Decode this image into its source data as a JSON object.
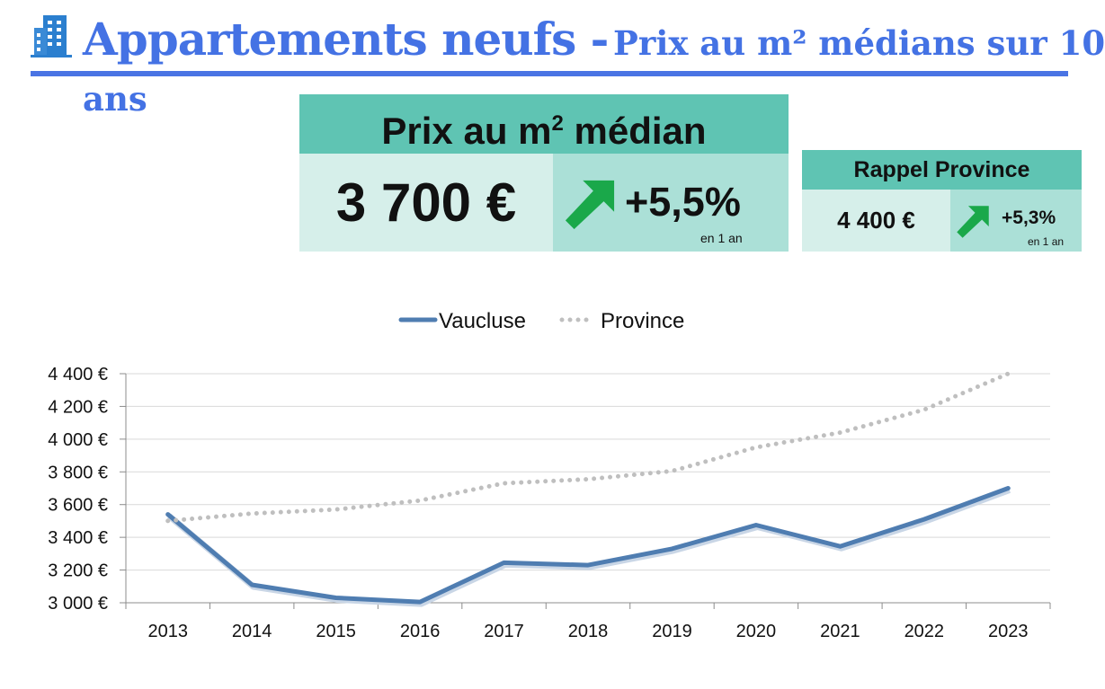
{
  "header": {
    "title_main": "Appartements neufs -",
    "title_sub": "Prix au m² médians sur 10",
    "title_cont": "ans",
    "icon": "building-icon"
  },
  "main_card": {
    "heading": "Prix au m",
    "heading_sup": "2",
    "heading_end": " médian",
    "price": "3 700 €",
    "evolution": "+5,5%",
    "period": "en 1 an",
    "arrow_icon": "arrow-up-right-icon"
  },
  "province_card": {
    "heading": "Rappel Province",
    "price": "4 400 €",
    "evolution": "+5,3%",
    "period": "en 1 an",
    "arrow_icon": "arrow-up-right-icon"
  },
  "colors": {
    "title": "#4472e4",
    "card_head": "#5fc4b3",
    "card_light": "#d6efea",
    "card_mid": "#abe0d7",
    "arrow": "#1aa84a",
    "vaucluse": "#4f7db1",
    "province": "#bfbfbf"
  },
  "chart_data": {
    "type": "line",
    "categories": [
      "2013",
      "2014",
      "2015",
      "2016",
      "2017",
      "2018",
      "2019",
      "2020",
      "2021",
      "2022",
      "2023"
    ],
    "series": [
      {
        "name": "Vaucluse",
        "style": "solid",
        "color": "#4f7db1",
        "values": [
          3540,
          3110,
          3030,
          3005,
          3245,
          3230,
          3330,
          3475,
          3345,
          3510,
          3700
        ]
      },
      {
        "name": "Province",
        "style": "dotted",
        "color": "#bfbfbf",
        "values": [
          3500,
          3545,
          3570,
          3625,
          3730,
          3755,
          3805,
          3950,
          4040,
          4180,
          4400
        ]
      }
    ],
    "yticks": [
      "4 400 €",
      "4 200 €",
      "4 000 €",
      "3 800 €",
      "3 600 €",
      "3 400 €",
      "3 200 €",
      "3 000 €"
    ],
    "ylim": [
      3000,
      4400
    ],
    "xlabel": "",
    "ylabel": "",
    "grid": true,
    "legend_position": "top"
  }
}
